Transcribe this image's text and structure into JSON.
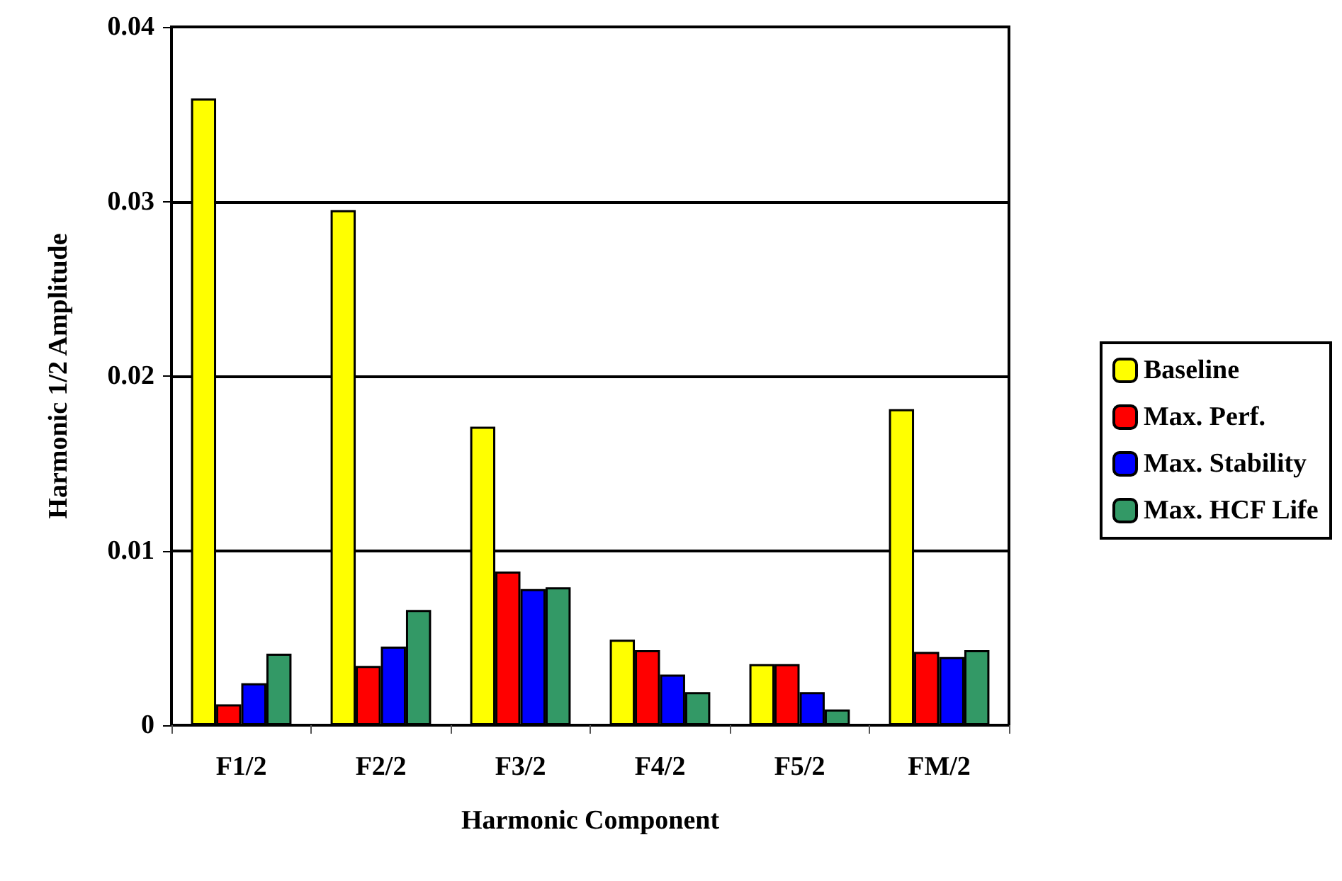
{
  "chart_data": {
    "type": "bar",
    "xlabel": "Harmonic Component",
    "ylabel": "Harmonic 1/2 Amplitude",
    "categories": [
      "F1/2",
      "F2/2",
      "F3/2",
      "F4/2",
      "F5/2",
      "FM/2"
    ],
    "series": [
      {
        "name": "Baseline",
        "color": "#ffff00",
        "values": [
          0.0359,
          0.0295,
          0.0171,
          0.0049,
          0.0035,
          0.0181
        ]
      },
      {
        "name": "Max. Perf.",
        "color": "#ff0000",
        "values": [
          0.0012,
          0.0034,
          0.0088,
          0.0043,
          0.0035,
          0.0042
        ]
      },
      {
        "name": "Max. Stability",
        "color": "#0000ff",
        "values": [
          0.0024,
          0.0045,
          0.0078,
          0.0029,
          0.0019,
          0.0039
        ]
      },
      {
        "name": "Max. HCF Life",
        "color": "#339966",
        "values": [
          0.0041,
          0.0066,
          0.0079,
          0.0019,
          0.0009,
          0.0043
        ]
      }
    ],
    "ylim": [
      0,
      0.04
    ],
    "yticks": [
      0,
      0.01,
      0.02,
      0.03,
      0.04
    ],
    "grid": "y",
    "legend": "right"
  }
}
